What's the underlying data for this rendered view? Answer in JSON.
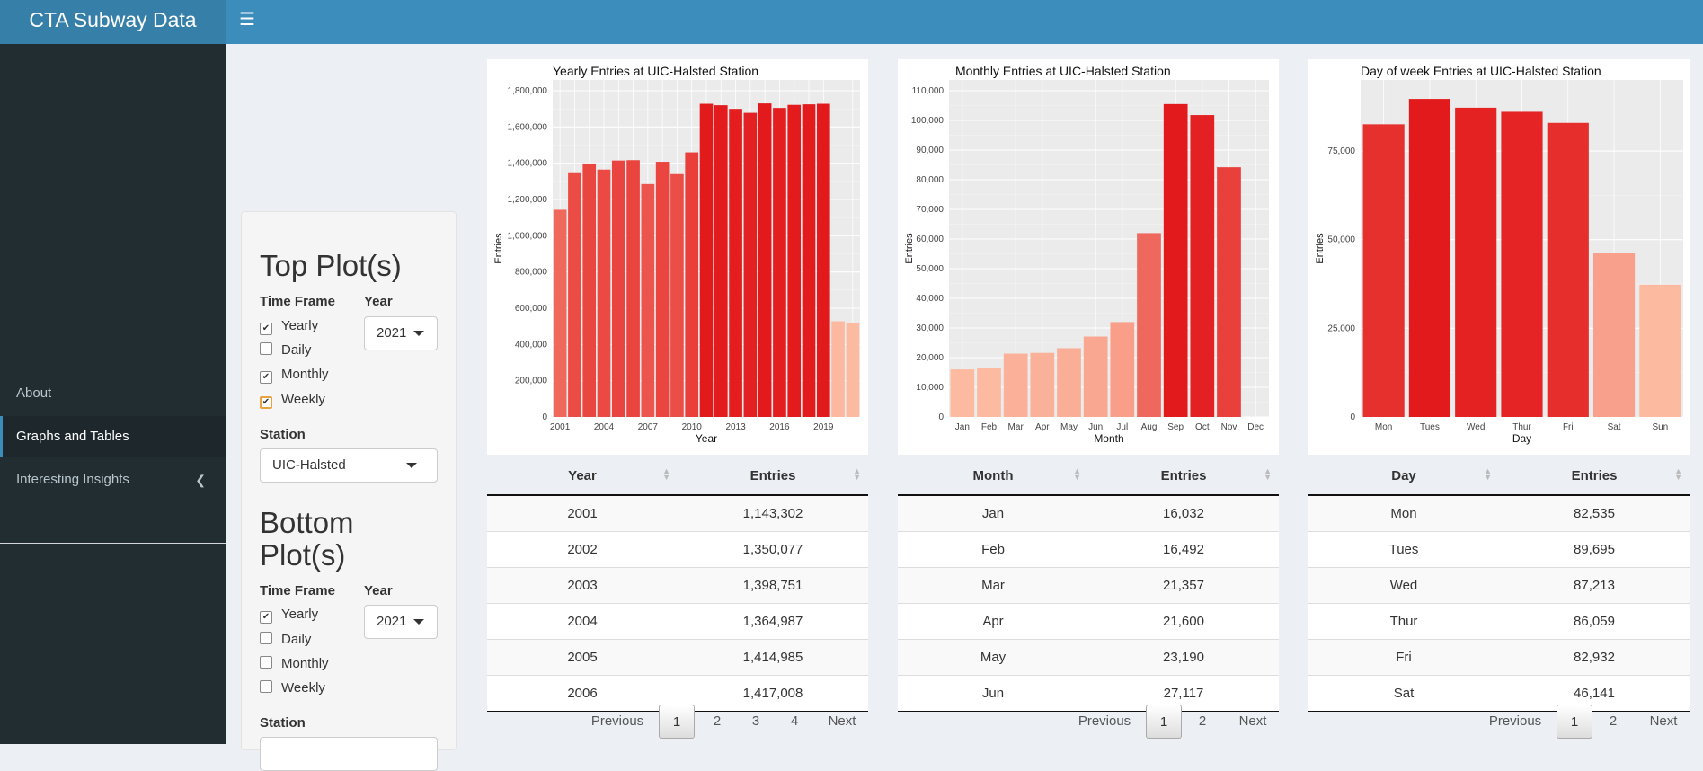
{
  "header": {
    "app_title": "CTA Subway Data",
    "menu_icon": "hamburger-icon"
  },
  "sidebar": {
    "items": [
      {
        "label": "About"
      },
      {
        "label": "Graphs and Tables"
      },
      {
        "label": "Interesting Insights"
      }
    ]
  },
  "controls": {
    "top": {
      "title": "Top Plot(s)",
      "time_frame_label": "Time Frame",
      "year_label": "Year",
      "year_value": "2021",
      "options": [
        {
          "label": "Yearly",
          "checked": true
        },
        {
          "label": "Daily",
          "checked": false
        },
        {
          "label": "Monthly",
          "checked": true
        },
        {
          "label": "Weekly",
          "checked": true
        }
      ],
      "station_label": "Station",
      "station_value": "UIC-Halsted"
    },
    "bottom": {
      "title": "Bottom Plot(s)",
      "time_frame_label": "Time Frame",
      "year_label": "Year",
      "year_value": "2021",
      "options": [
        {
          "label": "Yearly",
          "checked": true
        },
        {
          "label": "Daily",
          "checked": false
        },
        {
          "label": "Monthly",
          "checked": false
        },
        {
          "label": "Weekly",
          "checked": false
        }
      ],
      "station_label": "Station"
    }
  },
  "chart_data": [
    {
      "type": "bar",
      "title": "Yearly Entries at UIC-Halsted Station",
      "xlabel": "Year",
      "ylabel": "Entries",
      "categories": [
        "2001",
        "2002",
        "2003",
        "2004",
        "2005",
        "2006",
        "2007",
        "2008",
        "2009",
        "2010",
        "2011",
        "2012",
        "2013",
        "2014",
        "2015",
        "2016",
        "2017",
        "2018",
        "2019",
        "2020",
        "2021"
      ],
      "values": [
        1143302,
        1350077,
        1398751,
        1364987,
        1414985,
        1417008,
        1285000,
        1408000,
        1340000,
        1460000,
        1728000,
        1720000,
        1700000,
        1678000,
        1730000,
        1705000,
        1722000,
        1725000,
        1728000,
        528000,
        516000
      ],
      "x_ticks": [
        "2001",
        "2004",
        "2007",
        "2010",
        "2013",
        "2016",
        "2019"
      ],
      "y_ticks": [
        "0",
        "200,000",
        "400,000",
        "600,000",
        "800,000",
        "1,000,000",
        "1,200,000",
        "1,400,000",
        "1,600,000",
        "1,800,000"
      ],
      "ylim": [
        0,
        1800000
      ]
    },
    {
      "type": "bar",
      "title": "Monthly Entries at UIC-Halsted Station",
      "xlabel": "Month",
      "ylabel": "Entries",
      "categories": [
        "Jan",
        "Feb",
        "Mar",
        "Apr",
        "May",
        "Jun",
        "Jul",
        "Aug",
        "Sep",
        "Oct",
        "Nov",
        "Dec"
      ],
      "values": [
        16032,
        16492,
        21357,
        21600,
        23190,
        27117,
        32000,
        62000,
        105500,
        101800,
        84200,
        0
      ],
      "y_ticks": [
        "0",
        "10,000",
        "20,000",
        "30,000",
        "40,000",
        "50,000",
        "60,000",
        "70,000",
        "80,000",
        "90,000",
        "100,000",
        "110,000"
      ],
      "ylim": [
        0,
        110000
      ]
    },
    {
      "type": "bar",
      "title": "Day of week Entries at UIC-Halsted Station",
      "xlabel": "Day",
      "ylabel": "Entries",
      "categories": [
        "Mon",
        "Tues",
        "Wed",
        "Thur",
        "Fri",
        "Sat",
        "Sun"
      ],
      "values": [
        82535,
        89695,
        87213,
        86059,
        82932,
        46141,
        37300
      ],
      "y_ticks": [
        "0",
        "25,000",
        "50,000",
        "75,000"
      ],
      "ylim": [
        0,
        92000
      ]
    }
  ],
  "tables": [
    {
      "headers": [
        "Year",
        "Entries"
      ],
      "rows": [
        [
          "2001",
          "1,143,302"
        ],
        [
          "2002",
          "1,350,077"
        ],
        [
          "2003",
          "1,398,751"
        ],
        [
          "2004",
          "1,364,987"
        ],
        [
          "2005",
          "1,414,985"
        ],
        [
          "2006",
          "1,417,008"
        ]
      ],
      "pager": [
        "Previous",
        "1",
        "2",
        "3",
        "4",
        "Next"
      ]
    },
    {
      "headers": [
        "Month",
        "Entries"
      ],
      "rows": [
        [
          "Jan",
          "16,032"
        ],
        [
          "Feb",
          "16,492"
        ],
        [
          "Mar",
          "21,357"
        ],
        [
          "Apr",
          "21,600"
        ],
        [
          "May",
          "23,190"
        ],
        [
          "Jun",
          "27,117"
        ]
      ],
      "pager": [
        "Previous",
        "1",
        "2",
        "Next"
      ]
    },
    {
      "headers": [
        "Day",
        "Entries"
      ],
      "rows": [
        [
          "Mon",
          "82,535"
        ],
        [
          "Tues",
          "89,695"
        ],
        [
          "Wed",
          "87,213"
        ],
        [
          "Thur",
          "86,059"
        ],
        [
          "Fri",
          "82,932"
        ],
        [
          "Sat",
          "46,141"
        ]
      ],
      "pager": [
        "Previous",
        "1",
        "2",
        "Next"
      ]
    }
  ]
}
